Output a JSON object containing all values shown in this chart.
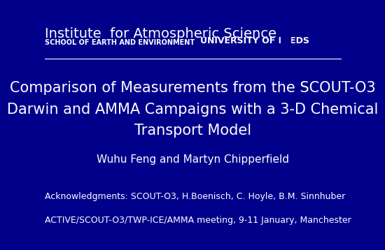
{
  "background_color": "#00008B",
  "title_line1": "Comparison of Measurements from the SCOUT-O3",
  "title_line2": "Darwin and AMMA Campaigns with a 3-D Chemical",
  "title_line3": "Transport Model",
  "author": "Wuhu Feng and Martyn Chipperfield",
  "ack_line": "Acknowledgments: SCOUT-O3, H.Boenisch, C. Hoyle, B.M. Sinnhuber",
  "meeting_line": "ACTIVE/SCOUT-O3/TWP-ICE/AMMA meeting, 9-11 January, Manchester",
  "inst_name": "Institute  for Atmospheric Science",
  "inst_sub": "SCHOOL OF EARTH AND ENVIRONMENT",
  "univ_name": "UNIVERSITY OF LEEDS",
  "text_color": "#FFFFFF",
  "header_line_color": "#FFFFFF",
  "inst_name_fontsize": 14,
  "inst_sub_fontsize": 7,
  "univ_fontsize": 9,
  "title_fontsize": 15,
  "author_fontsize": 11,
  "ack_fontsize": 9,
  "meeting_fontsize": 9
}
